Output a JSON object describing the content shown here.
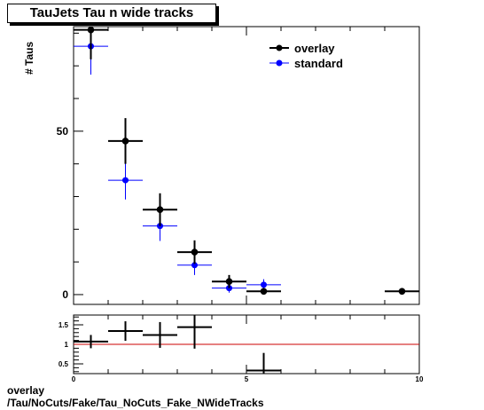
{
  "title": "TauJets Tau n wide tracks",
  "footer": {
    "line1": "overlay",
    "line2": "/Tau/NoCuts/Fake/Tau_NoCuts_Fake_NWideTracks"
  },
  "colors": {
    "overlay": "#000000",
    "standard": "#0000ff",
    "ratio_line": "#cc0000"
  },
  "chart_data": [
    {
      "type": "scatter",
      "title": "TauJets Tau n wide tracks",
      "ylabel": "# Taus",
      "xlabel": "",
      "xlim": [
        0,
        10
      ],
      "ylim": [
        -3,
        82
      ],
      "yticks": [
        0,
        50
      ],
      "xticks": [
        0,
        5,
        10
      ],
      "legend": "top-right",
      "series": [
        {
          "name": "overlay",
          "x": [
            0.5,
            1.5,
            2.5,
            3.5,
            4.5,
            5.5,
            9.5
          ],
          "y": [
            81,
            47,
            26,
            13,
            4,
            1,
            1
          ],
          "yerr": [
            9,
            7,
            5,
            3.6,
            2,
            1,
            1
          ]
        },
        {
          "name": "standard",
          "x": [
            0.5,
            1.5,
            2.5,
            3.5,
            4.5,
            5.5
          ],
          "y": [
            76,
            35,
            21,
            9,
            2,
            3
          ],
          "yerr": [
            8.7,
            5.9,
            4.6,
            3,
            1.4,
            1.7
          ]
        }
      ]
    },
    {
      "type": "scatter",
      "title": "",
      "xlabel": "",
      "ylabel": "",
      "xlim": [
        0,
        10
      ],
      "ylim": [
        0.25,
        1.75
      ],
      "yticks": [
        0.5,
        1,
        1.5
      ],
      "yticklabels": [
        "0.5",
        "1",
        "1.5"
      ],
      "xticks": [
        0,
        5,
        10
      ],
      "reference_line": 1,
      "series": [
        {
          "name": "ratio",
          "x": [
            0.5,
            1.5,
            2.5,
            3.5,
            5.5
          ],
          "y": [
            1.07,
            1.34,
            1.24,
            1.44,
            0.33
          ],
          "yerr": [
            0.17,
            0.25,
            0.33,
            0.55,
            0.45
          ]
        }
      ]
    }
  ]
}
